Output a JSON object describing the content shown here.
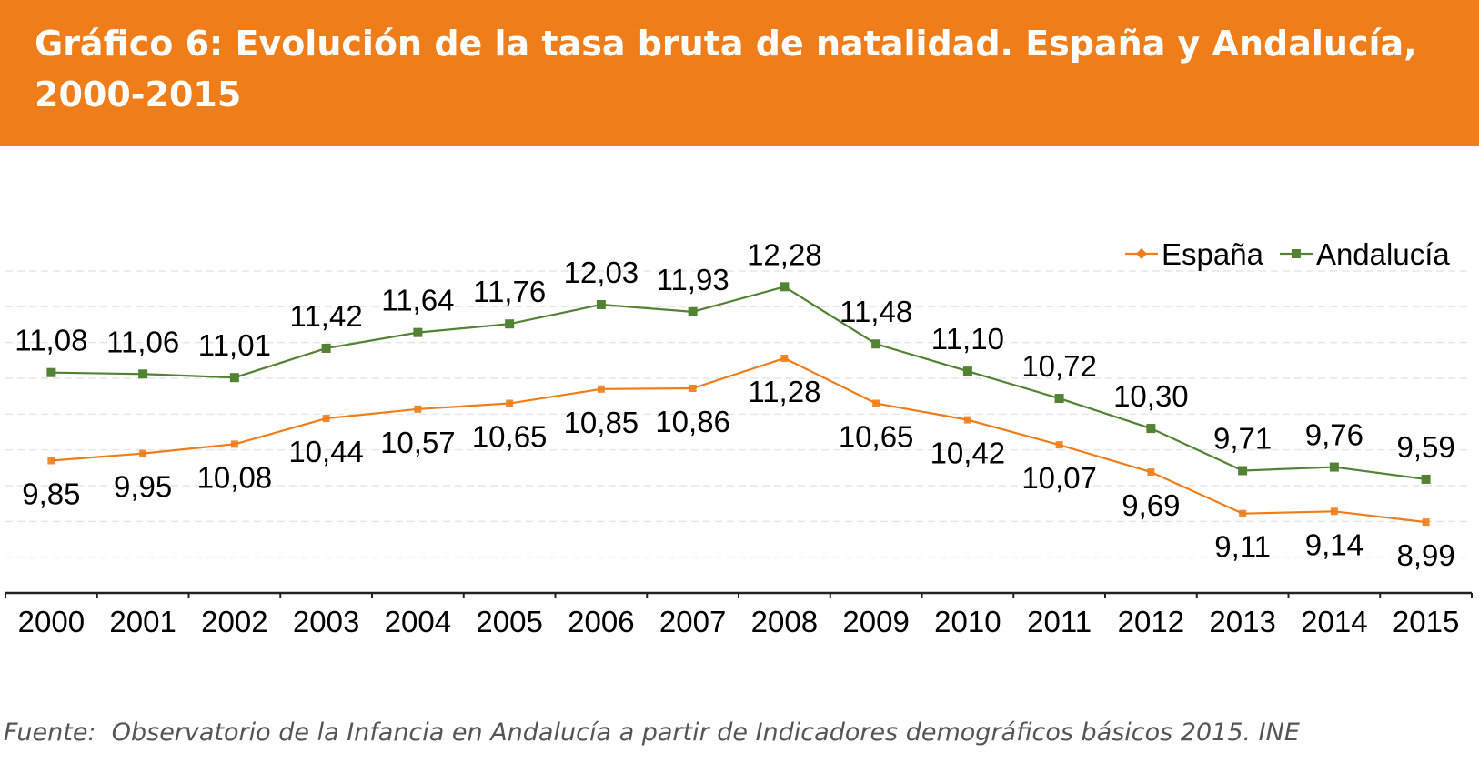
{
  "title": "Gráfico 6: Evolución de la tasa bruta de natalidad. España y Andalucía, 2000-2015",
  "source": "Fuente:  Observatorio de la Infancia en Andalucía a partir de Indicadores demográficos básicos 2015. INE",
  "chart_data": {
    "type": "line",
    "title": "Gráfico 6: Evolución de la tasa bruta de natalidad. España y Andalucía, 2000-2015",
    "xlabel": "",
    "ylabel": "",
    "categories": [
      "2000",
      "2001",
      "2002",
      "2003",
      "2004",
      "2005",
      "2006",
      "2007",
      "2008",
      "2009",
      "2010",
      "2011",
      "2012",
      "2013",
      "2014",
      "2015"
    ],
    "ylim": [
      8,
      12.5
    ],
    "grid": true,
    "legend": "top-right",
    "series": [
      {
        "name": "España",
        "color": "#ee7d1a",
        "marker": "diamond",
        "values": [
          9.85,
          9.95,
          10.08,
          10.44,
          10.57,
          10.65,
          10.85,
          10.86,
          11.28,
          10.65,
          10.42,
          10.07,
          9.69,
          9.11,
          9.14,
          8.99
        ],
        "labels": [
          "9,85",
          "9,95",
          "10,08",
          "10,44",
          "10,57",
          "10,65",
          "10,85",
          "10,86",
          "11,28",
          "10,65",
          "10,42",
          "10,07",
          "9,69",
          "9,11",
          "9,14",
          "8,99"
        ]
      },
      {
        "name": "Andalucía",
        "color": "#548235",
        "marker": "square",
        "values": [
          11.08,
          11.06,
          11.01,
          11.42,
          11.64,
          11.76,
          12.03,
          11.93,
          12.28,
          11.48,
          11.1,
          10.72,
          10.3,
          9.71,
          9.76,
          9.59
        ],
        "labels": [
          "11,08",
          "11,06",
          "11,01",
          "11,42",
          "11,64",
          "11,76",
          "12,03",
          "11,93",
          "12,28",
          "11,48",
          "11,10",
          "10,72",
          "10,30",
          "9,71",
          "9,76",
          "9,59"
        ]
      }
    ]
  }
}
